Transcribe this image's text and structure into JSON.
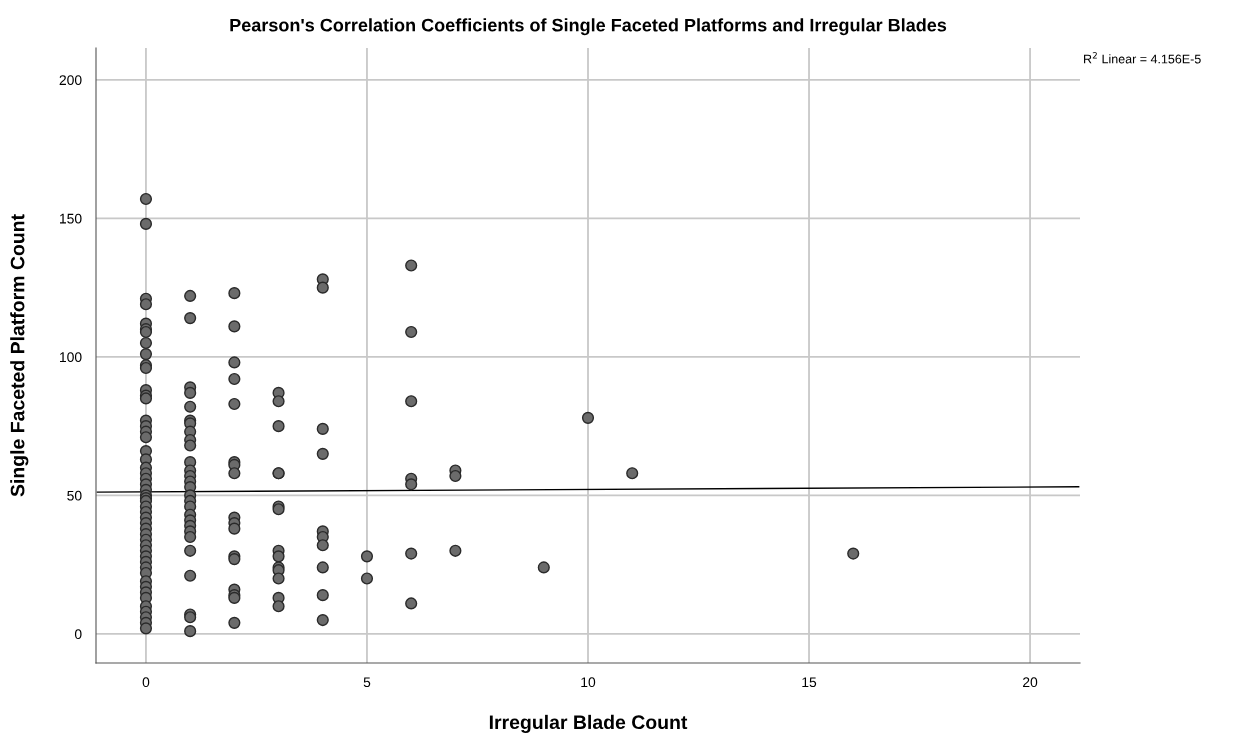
{
  "chart_data": {
    "type": "scatter",
    "title": "Pearson's Correlation Coefficients of Single Faceted Platforms and Irregular Blades",
    "xlabel": "Irregular Blade Count",
    "ylabel": "Single Faceted Platform Count",
    "annotations": [
      "R$^{2}$ Linear = 4.156E-5"
    ],
    "series": [
      {
        "color": "#6b6b6b",
        "marker": "circle",
        "x": [
          0,
          0,
          0,
          0,
          0,
          0,
          0,
          0,
          0,
          0,
          0,
          0,
          0,
          0,
          0,
          0,
          0,
          0,
          0,
          0,
          0,
          0,
          0,
          0,
          0,
          0,
          0,
          0,
          0,
          0,
          0,
          0,
          0,
          0,
          0,
          0,
          0,
          0,
          0,
          0,
          0,
          0,
          0,
          0,
          0,
          0,
          0,
          0,
          0,
          0,
          1,
          1,
          1,
          1,
          1,
          1,
          1,
          1,
          1,
          1,
          1,
          1,
          1,
          1,
          1,
          1,
          1,
          1,
          1,
          1,
          1,
          1,
          1,
          1,
          1,
          1,
          1,
          1,
          2,
          2,
          2,
          2,
          2,
          2,
          2,
          2,
          2,
          2,
          2,
          2,
          2,
          2,
          2,
          2,
          2,
          3,
          3,
          3,
          3,
          3,
          3,
          3,
          3,
          3,
          3,
          3,
          3,
          3,
          3,
          4,
          4,
          4,
          4,
          4,
          4,
          4,
          4,
          4,
          4,
          5,
          5,
          6,
          6,
          6,
          6,
          6,
          6,
          6,
          7,
          7,
          7,
          9,
          10,
          11,
          16
        ],
        "values": [
          157,
          148,
          121,
          119,
          112,
          110,
          109,
          105,
          101,
          97,
          96,
          88,
          86,
          85,
          77,
          75,
          73,
          71,
          66,
          63,
          60,
          58,
          56,
          54,
          52,
          50,
          49,
          48,
          46,
          44,
          42,
          40,
          38,
          36,
          34,
          32,
          30,
          28,
          26,
          24,
          22,
          19,
          17,
          15,
          13,
          10,
          8,
          6,
          4,
          2,
          122,
          114,
          89,
          87,
          82,
          77,
          76,
          73,
          70,
          68,
          62,
          59,
          57,
          55,
          53,
          50,
          48,
          46,
          43,
          41,
          39,
          37,
          35,
          30,
          21,
          7,
          6,
          1,
          123,
          111,
          98,
          92,
          83,
          62,
          61,
          58,
          42,
          40,
          38,
          28,
          27,
          16,
          14,
          13,
          4,
          87,
          84,
          75,
          58,
          58,
          46,
          45,
          30,
          28,
          24,
          23,
          20,
          13,
          10,
          128,
          125,
          74,
          65,
          37,
          35,
          32,
          24,
          14,
          5,
          28,
          20,
          133,
          109,
          84,
          56,
          54,
          29,
          11,
          59,
          57,
          30,
          24,
          78,
          58,
          29
        ]
      },
      {
        "type": "line",
        "color": "#000000",
        "x": [
          -1.1,
          21.1
        ],
        "values": [
          51.2,
          53.1
        ]
      }
    ],
    "xlim": [
      -1.13,
      21.13
    ],
    "ylim": [
      -10.5,
      211.5
    ],
    "xticks": [
      0,
      5,
      10,
      15,
      20
    ],
    "yticks": [
      0,
      50,
      100,
      150,
      200
    ],
    "grid": true,
    "line_style": "solid"
  }
}
